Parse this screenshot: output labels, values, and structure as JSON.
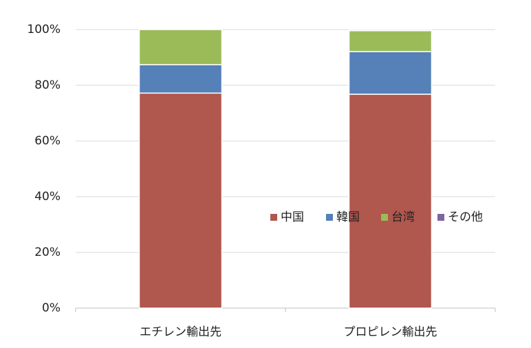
{
  "chart_data": {
    "type": "stacked_bar",
    "categories": [
      "エチレン輸出先",
      "プロピレン輸出先"
    ],
    "series": [
      {
        "name": "中国",
        "color": "#b0574e",
        "values": [
          77.2,
          76.8
        ]
      },
      {
        "name": "韓国",
        "color": "#5580b8",
        "values": [
          10.2,
          15.3
        ]
      },
      {
        "name": "台湾",
        "color": "#9bbb59",
        "values": [
          12.6,
          7.5
        ]
      },
      {
        "name": "その他",
        "color": "#8064a2",
        "values": [
          0,
          0.4
        ]
      }
    ],
    "ylim": [
      0,
      100
    ],
    "yticks": [
      {
        "value": 0,
        "label": "0%"
      },
      {
        "value": 20,
        "label": "20%"
      },
      {
        "value": 40,
        "label": "40%"
      },
      {
        "value": 60,
        "label": "60%"
      },
      {
        "value": 80,
        "label": "80%"
      },
      {
        "value": 100,
        "label": "100%"
      }
    ],
    "grid": true,
    "legend": "right"
  }
}
